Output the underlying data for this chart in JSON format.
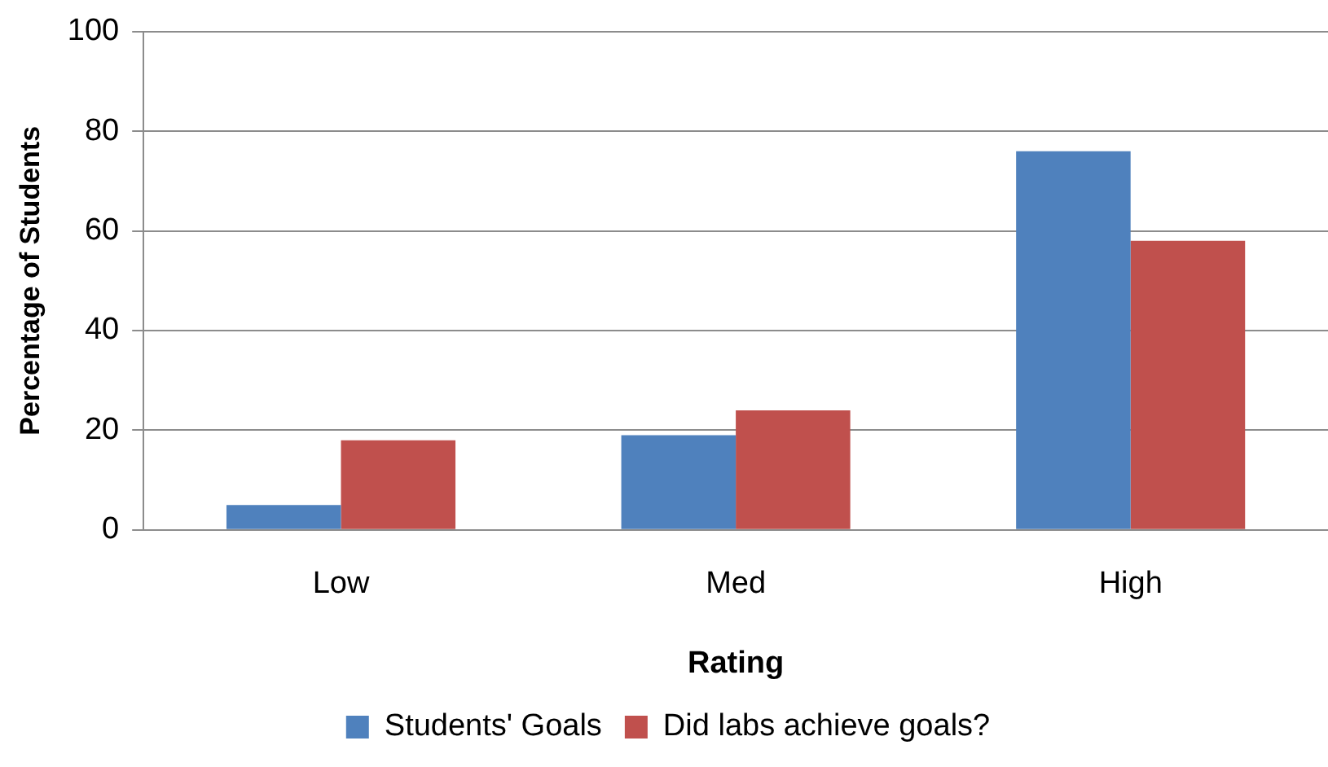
{
  "chart_data": {
    "type": "bar",
    "xlabel": "Rating",
    "ylabel": "Percentage of Students",
    "categories": [
      "Low",
      "Med",
      "High"
    ],
    "series": [
      {
        "name": "Students' Goals",
        "color": "#4f81bd",
        "values": [
          5,
          19,
          76
        ]
      },
      {
        "name": "Did labs achieve goals?",
        "color": "#c0504d",
        "values": [
          18,
          24,
          58
        ]
      }
    ],
    "ylim": [
      0,
      100
    ],
    "yticks": [
      0,
      20,
      40,
      60,
      80,
      100
    ],
    "grid": "y",
    "legend": "bottom"
  }
}
